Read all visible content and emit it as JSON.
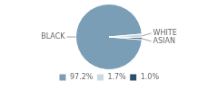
{
  "chart_data": {
    "type": "pie",
    "categories": [
      "BLACK",
      "WHITE",
      "ASIAN"
    ],
    "values": [
      97.2,
      1.7,
      1.0
    ],
    "value_labels": [
      "97.2%",
      "1.7%",
      "1.0%"
    ],
    "colors": [
      "#7a9eb5",
      "#c8dae4",
      "#2e4d6b"
    ],
    "legend": "bottom"
  }
}
